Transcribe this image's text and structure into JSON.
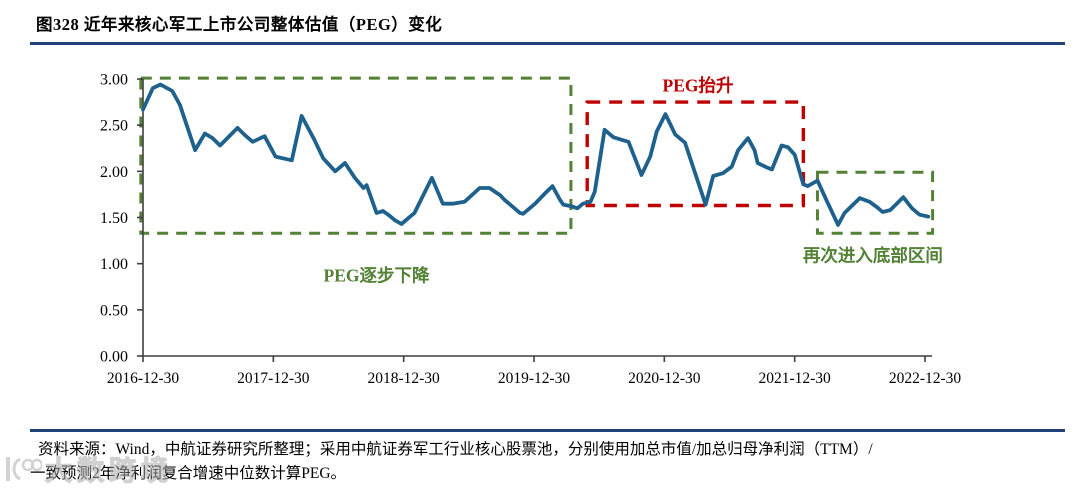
{
  "title": "图328  近年来核心军工上市公司整体估值（PEG）变化",
  "source": {
    "line1": "资料来源：Wind，中航证券研究所整理；采用中航证券军工行业核心股票池，分别使用加总市值/加总归母净利润（TTM）/",
    "line2": "一致预测2年净利润复合增速中位数计算PEG。"
  },
  "watermark": {
    "text": "大数跨境"
  },
  "colors": {
    "line": "#1F618D",
    "box_green": "#538135",
    "box_red": "#C00000",
    "rule_navy": "#1F4079",
    "axis": "#3F3F3F",
    "tick_label": "#000000"
  },
  "chart_data": {
    "type": "line",
    "title": "",
    "xlabel": "",
    "ylabel": "",
    "grid": false,
    "legend": "none",
    "ylim": [
      0.0,
      3.0
    ],
    "xlim_months": [
      0,
      72.6
    ],
    "y_ticks": [
      {
        "v": 0.0,
        "label": "0.00"
      },
      {
        "v": 0.5,
        "label": "0.50"
      },
      {
        "v": 1.0,
        "label": "1.00"
      },
      {
        "v": 1.5,
        "label": "1.50"
      },
      {
        "v": 2.0,
        "label": "2.00"
      },
      {
        "v": 2.5,
        "label": "2.50"
      },
      {
        "v": 3.0,
        "label": "3.00"
      }
    ],
    "x_ticks": [
      {
        "month": 0,
        "label": "2016-12-30"
      },
      {
        "month": 12,
        "label": "2017-12-30"
      },
      {
        "month": 24,
        "label": "2018-12-30"
      },
      {
        "month": 36,
        "label": "2019-12-30"
      },
      {
        "month": 48,
        "label": "2020-12-30"
      },
      {
        "month": 60,
        "label": "2021-12-30"
      },
      {
        "month": 72,
        "label": "2022-12-30"
      }
    ],
    "series": [
      {
        "name": "PEG",
        "x_months": [
          0,
          0.9,
          1.6,
          2.7,
          3.4,
          4.8,
          5.7,
          6.4,
          7.1,
          8.7,
          9.4,
          10.1,
          11.2,
          12.2,
          13.7,
          14.6,
          15.7,
          16.6,
          17.7,
          18.6,
          19.5,
          20.3,
          20.6,
          21.5,
          22.1,
          22.7,
          23.2,
          23.8,
          24.6,
          25.0,
          26.6,
          27.6,
          28.5,
          29.6,
          31.0,
          31.9,
          32.9,
          33.3,
          34.7,
          35.0,
          36.1,
          37.0,
          37.7,
          38.4,
          38.7,
          39.5,
          40.0,
          40.5,
          41.2,
          41.6,
          42.5,
          43.3,
          44.1,
          44.7,
          45.9,
          46.7,
          47.3,
          48.1,
          49.0,
          49.9,
          51.8,
          52.5,
          53.4,
          54.2,
          54.8,
          55.7,
          56.3,
          56.6,
          57.3,
          57.9,
          58.8,
          59.4,
          60.0,
          60.8,
          61.2,
          62.1,
          63.0,
          64.0,
          64.6,
          66.0,
          66.9,
          67.6,
          68.1,
          68.8,
          70.0,
          70.8,
          71.5,
          72.3
        ],
        "values": [
          2.67,
          2.9,
          2.94,
          2.87,
          2.72,
          2.23,
          2.41,
          2.36,
          2.28,
          2.47,
          2.39,
          2.32,
          2.38,
          2.16,
          2.12,
          2.6,
          2.36,
          2.14,
          2.0,
          2.09,
          1.93,
          1.82,
          1.85,
          1.55,
          1.57,
          1.52,
          1.47,
          1.43,
          1.51,
          1.55,
          1.93,
          1.65,
          1.65,
          1.67,
          1.82,
          1.82,
          1.74,
          1.69,
          1.55,
          1.54,
          1.65,
          1.76,
          1.84,
          1.69,
          1.64,
          1.62,
          1.6,
          1.65,
          1.67,
          1.78,
          2.45,
          2.37,
          2.34,
          2.32,
          1.96,
          2.16,
          2.43,
          2.62,
          2.4,
          2.31,
          1.64,
          1.95,
          1.98,
          2.05,
          2.23,
          2.36,
          2.23,
          2.09,
          2.05,
          2.02,
          2.28,
          2.26,
          2.18,
          1.86,
          1.84,
          1.9,
          1.67,
          1.42,
          1.55,
          1.71,
          1.67,
          1.61,
          1.56,
          1.58,
          1.72,
          1.6,
          1.53,
          1.51
        ]
      }
    ],
    "annotations": [
      {
        "kind": "box",
        "color": "green",
        "x0_m": -0.2,
        "x1_m": 39.4,
        "v_top": 3.01,
        "v_bottom": 1.33
      },
      {
        "kind": "box",
        "color": "red",
        "x0_m": 40.9,
        "x1_m": 60.8,
        "v_top": 2.75,
        "v_bottom": 1.63
      },
      {
        "kind": "box",
        "color": "green",
        "x0_m": 62.1,
        "x1_m": 72.7,
        "v_top": 1.99,
        "v_bottom": 1.33
      },
      {
        "kind": "label",
        "name": "annotation-peg-decline",
        "text": "PEG逐步下降",
        "color": "green",
        "x_m": 21.5,
        "v": 0.87
      },
      {
        "kind": "label",
        "name": "annotation-peg-rise",
        "text": "PEG抬升",
        "color": "red",
        "x_m": 51.1,
        "v": 2.93
      },
      {
        "kind": "label",
        "name": "annotation-bottom-zone",
        "text": "再次进入底部区间",
        "color": "green",
        "x_m": 67.2,
        "v": 1.09
      }
    ]
  }
}
